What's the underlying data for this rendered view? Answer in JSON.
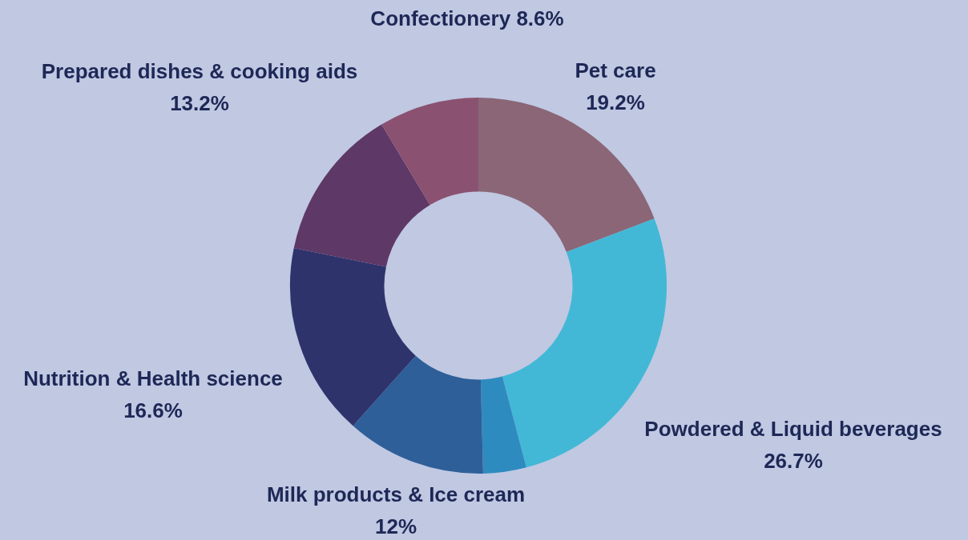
{
  "chart_data": {
    "type": "donut",
    "categories": [
      "Pet care",
      "Powdered & Liquid beverages",
      null,
      "Milk products & Ice cream",
      "Nutrition & Health science",
      "Prepared dishes & cooking aids",
      "Confectionery"
    ],
    "values": [
      19.2,
      26.7,
      3.7,
      12,
      16.6,
      13.2,
      8.6
    ],
    "value_labels": [
      "19.2%",
      "26.7%",
      null,
      "12%",
      "16.6%",
      "13.2%",
      "8.6%"
    ],
    "colors": [
      "#8a6677",
      "#42b8d6",
      "#2e8bbf",
      "#2e5f99",
      "#2f336b",
      "#5e3866",
      "#8a5270"
    ],
    "legend": false
  }
}
